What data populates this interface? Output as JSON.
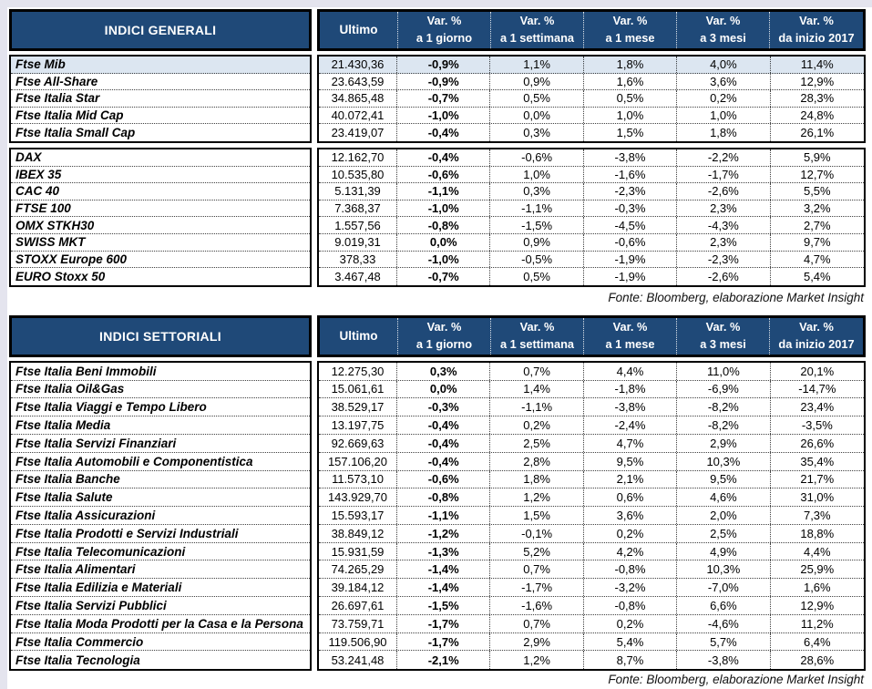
{
  "columns": {
    "ultimo": "Ultimo",
    "var_top": "Var. %",
    "var_subs": [
      "a 1 giorno",
      "a 1 settimana",
      "a 1 mese",
      "a 3 mesi",
      "da inizio 2017"
    ]
  },
  "general": {
    "title": "INDICI GENERALI",
    "source": "Fonte: Bloomberg, elaborazione Market Insight",
    "groups": [
      {
        "rows": [
          {
            "name": "Ftse Mib",
            "highlight": true,
            "values": [
              "21.430,36",
              "-0,9%",
              "1,1%",
              "1,8%",
              "4,0%",
              "11,4%"
            ]
          },
          {
            "name": "Ftse All-Share",
            "highlight": false,
            "values": [
              "23.643,59",
              "-0,9%",
              "0,9%",
              "1,6%",
              "3,6%",
              "12,9%"
            ]
          },
          {
            "name": "Ftse Italia Star",
            "highlight": false,
            "values": [
              "34.865,48",
              "-0,7%",
              "0,5%",
              "0,5%",
              "0,2%",
              "28,3%"
            ]
          },
          {
            "name": "Ftse Italia Mid Cap",
            "highlight": false,
            "values": [
              "40.072,41",
              "-1,0%",
              "0,0%",
              "1,0%",
              "1,0%",
              "24,8%"
            ]
          },
          {
            "name": "Ftse Italia Small Cap",
            "highlight": false,
            "values": [
              "23.419,07",
              "-0,4%",
              "0,3%",
              "1,5%",
              "1,8%",
              "26,1%"
            ]
          }
        ]
      },
      {
        "rows": [
          {
            "name": "DAX",
            "highlight": false,
            "values": [
              "12.162,70",
              "-0,4%",
              "-0,6%",
              "-3,8%",
              "-2,2%",
              "5,9%"
            ]
          },
          {
            "name": "IBEX 35",
            "highlight": false,
            "values": [
              "10.535,80",
              "-0,6%",
              "1,0%",
              "-1,6%",
              "-1,7%",
              "12,7%"
            ]
          },
          {
            "name": "CAC 40",
            "highlight": false,
            "values": [
              "5.131,39",
              "-1,1%",
              "0,3%",
              "-2,3%",
              "-2,6%",
              "5,5%"
            ]
          },
          {
            "name": "FTSE 100",
            "highlight": false,
            "values": [
              "7.368,37",
              "-1,0%",
              "-1,1%",
              "-0,3%",
              "2,3%",
              "3,2%"
            ]
          },
          {
            "name": "OMX STKH30",
            "highlight": false,
            "values": [
              "1.557,56",
              "-0,8%",
              "-1,5%",
              "-4,5%",
              "-4,3%",
              "2,7%"
            ]
          },
          {
            "name": "SWISS MKT",
            "highlight": false,
            "values": [
              "9.019,31",
              "0,0%",
              "0,9%",
              "-0,6%",
              "2,3%",
              "9,7%"
            ]
          },
          {
            "name": "STOXX Europe 600",
            "highlight": false,
            "values": [
              "378,33",
              "-1,0%",
              "-0,5%",
              "-1,9%",
              "-2,3%",
              "4,7%"
            ]
          },
          {
            "name": "EURO Stoxx 50",
            "highlight": false,
            "values": [
              "3.467,48",
              "-0,7%",
              "0,5%",
              "-1,9%",
              "-2,6%",
              "5,4%"
            ]
          }
        ]
      }
    ]
  },
  "sector": {
    "title": "INDICI SETTORIALI",
    "source": "Fonte: Bloomberg, elaborazione Market Insight",
    "groups": [
      {
        "rows": [
          {
            "name": "Ftse Italia Beni Immobili",
            "highlight": false,
            "values": [
              "12.275,30",
              "0,3%",
              "0,7%",
              "4,4%",
              "11,0%",
              "20,1%"
            ]
          },
          {
            "name": "Ftse Italia Oil&Gas",
            "highlight": false,
            "values": [
              "15.061,61",
              "0,0%",
              "1,4%",
              "-1,8%",
              "-6,9%",
              "-14,7%"
            ]
          },
          {
            "name": "Ftse Italia Viaggi e Tempo Libero",
            "highlight": false,
            "values": [
              "38.529,17",
              "-0,3%",
              "-1,1%",
              "-3,8%",
              "-8,2%",
              "23,4%"
            ]
          },
          {
            "name": "Ftse Italia Media",
            "highlight": false,
            "values": [
              "13.197,75",
              "-0,4%",
              "0,2%",
              "-2,4%",
              "-8,2%",
              "-3,5%"
            ]
          },
          {
            "name": "Ftse Italia Servizi Finanziari",
            "highlight": false,
            "values": [
              "92.669,63",
              "-0,4%",
              "2,5%",
              "4,7%",
              "2,9%",
              "26,6%"
            ]
          },
          {
            "name": "Ftse Italia Automobili e Componentistica",
            "highlight": false,
            "values": [
              "157.106,20",
              "-0,4%",
              "2,8%",
              "9,5%",
              "10,3%",
              "35,4%"
            ]
          },
          {
            "name": "Ftse Italia Banche",
            "highlight": false,
            "values": [
              "11.573,10",
              "-0,6%",
              "1,8%",
              "2,1%",
              "9,5%",
              "21,7%"
            ]
          },
          {
            "name": "Ftse Italia Salute",
            "highlight": false,
            "values": [
              "143.929,70",
              "-0,8%",
              "1,2%",
              "0,6%",
              "4,6%",
              "31,0%"
            ]
          },
          {
            "name": "Ftse Italia Assicurazioni",
            "highlight": false,
            "values": [
              "15.593,17",
              "-1,1%",
              "1,5%",
              "3,6%",
              "2,0%",
              "7,3%"
            ]
          },
          {
            "name": "Ftse Italia Prodotti e Servizi Industriali",
            "highlight": false,
            "values": [
              "38.849,12",
              "-1,2%",
              "-0,1%",
              "0,2%",
              "2,5%",
              "18,8%"
            ]
          },
          {
            "name": "Ftse Italia Telecomunicazioni",
            "highlight": false,
            "values": [
              "15.931,59",
              "-1,3%",
              "5,2%",
              "4,2%",
              "4,9%",
              "4,4%"
            ]
          },
          {
            "name": "Ftse Italia Alimentari",
            "highlight": false,
            "values": [
              "74.265,29",
              "-1,4%",
              "0,7%",
              "-0,8%",
              "10,3%",
              "25,9%"
            ]
          },
          {
            "name": "Ftse Italia Edilizia e Materiali",
            "highlight": false,
            "values": [
              "39.184,12",
              "-1,4%",
              "-1,7%",
              "-3,2%",
              "-7,0%",
              "1,6%"
            ]
          },
          {
            "name": "Ftse Italia Servizi Pubblici",
            "highlight": false,
            "values": [
              "26.697,61",
              "-1,5%",
              "-1,6%",
              "-0,8%",
              "6,6%",
              "12,9%"
            ]
          },
          {
            "name": "Ftse Italia Moda Prodotti per la Casa e la Persona",
            "highlight": false,
            "values": [
              "73.759,71",
              "-1,7%",
              "0,7%",
              "0,2%",
              "-4,6%",
              "11,2%"
            ]
          },
          {
            "name": "Ftse Italia Commercio",
            "highlight": false,
            "values": [
              "119.506,90",
              "-1,7%",
              "2,9%",
              "5,4%",
              "5,7%",
              "6,4%"
            ]
          },
          {
            "name": "Ftse Italia Tecnologia",
            "highlight": false,
            "values": [
              "53.241,48",
              "-2,1%",
              "1,2%",
              "8,7%",
              "-3,8%",
              "28,6%"
            ]
          }
        ]
      }
    ]
  },
  "colors": {
    "header_bg": "#1F4978",
    "header_text": "#FFFFFF",
    "highlight_row": "#DCE6F1",
    "border": "#000000",
    "page_edge": "#E4E4EE"
  }
}
